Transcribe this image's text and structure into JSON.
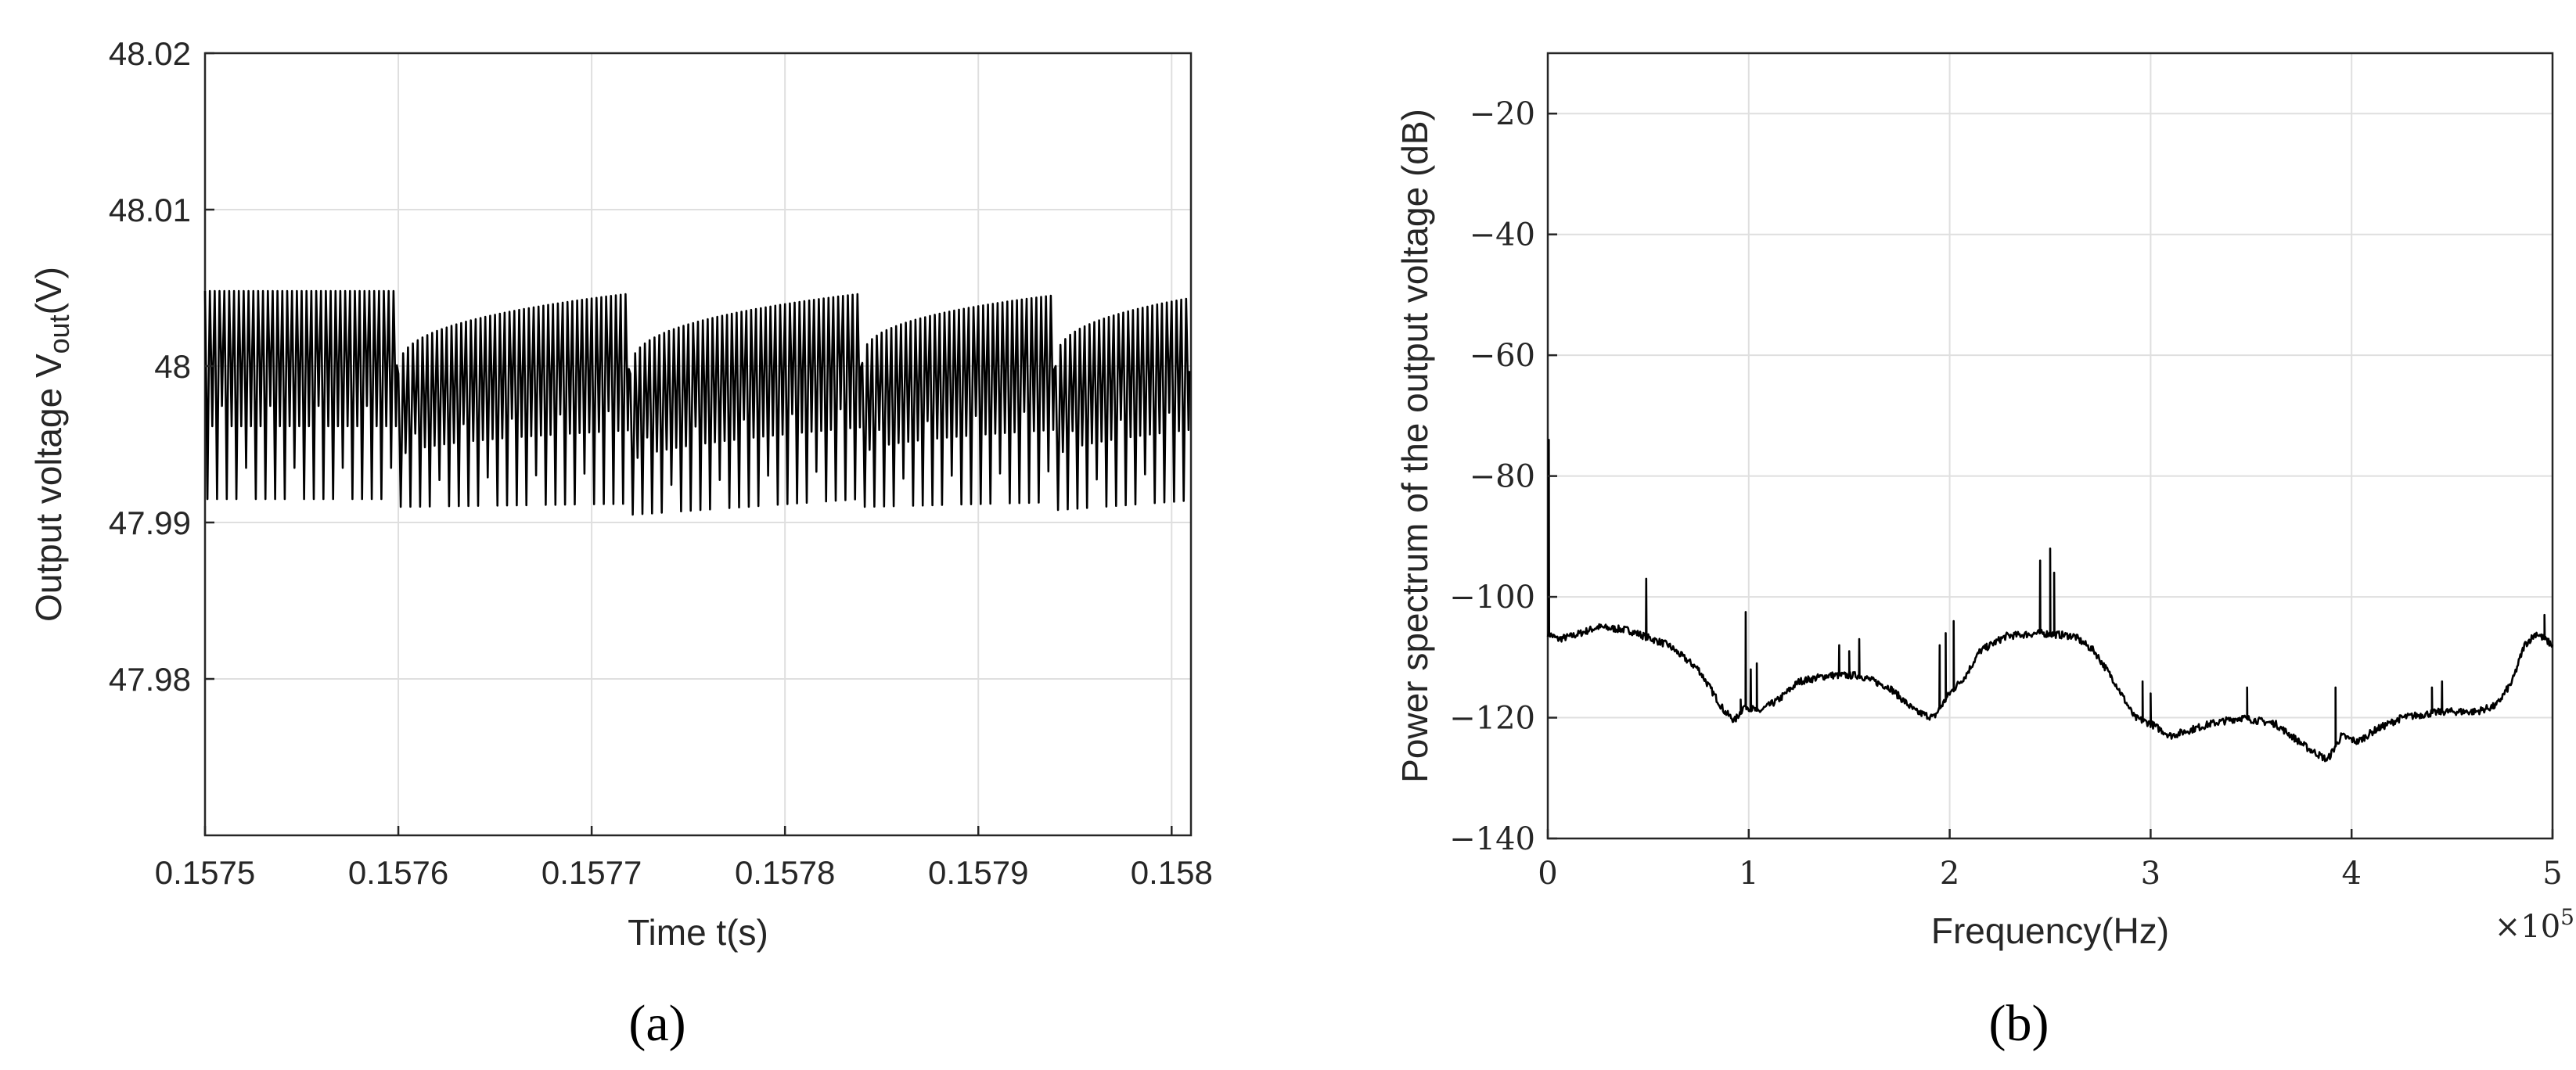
{
  "chart_data": [
    {
      "type": "line",
      "caption": "(a)",
      "xlabel": "Time t(s)",
      "ylabel": "Output voltage V",
      "ylabel_sub": "out",
      "ylabel_unit": "(V)",
      "xlim": [
        0.1575,
        0.15801
      ],
      "ylim": [
        47.97,
        48.02
      ],
      "xticks": [
        0.1575,
        0.1576,
        0.1577,
        0.1578,
        0.1579,
        0.158
      ],
      "xtick_labels": [
        "0.1575",
        "0.1576",
        "0.1577",
        "0.1578",
        "0.1579",
        "0.158"
      ],
      "yticks": [
        47.98,
        47.99,
        48.0,
        48.01,
        48.02
      ],
      "ytick_labels": [
        "47.98",
        "47.99",
        "48",
        "48.01",
        "48.02"
      ],
      "grid": true,
      "series": [
        {
          "ripple_period_s": 2.5e-06,
          "segments": [
            {
              "t_start": 0.1575,
              "t_end": 0.1576,
              "peak_start": 48.0048,
              "peak_end": 48.0048,
              "trough_start": 47.9915,
              "trough_end": 47.9915
            },
            {
              "t_start": 0.1576,
              "t_end": 0.15772,
              "peak_start": 47.9995,
              "peak_end": 48.0046,
              "trough_start": 47.991,
              "trough_end": 47.9912
            },
            {
              "t_start": 0.15772,
              "t_end": 0.15784,
              "peak_start": 47.9995,
              "peak_end": 48.0046,
              "trough_start": 47.9905,
              "trough_end": 47.9915
            },
            {
              "t_start": 0.15784,
              "t_end": 0.15794,
              "peak_start": 48.0002,
              "peak_end": 48.0045,
              "trough_start": 47.991,
              "trough_end": 47.9913
            },
            {
              "t_start": 0.15794,
              "t_end": 0.15801,
              "peak_start": 48.0,
              "peak_end": 48.0043,
              "trough_start": 47.9908,
              "trough_end": 47.9914
            }
          ]
        }
      ]
    },
    {
      "type": "line",
      "caption": "(b)",
      "xlabel": "Frequency(Hz)",
      "ylabel": "Power spectrum of the output voltage (dB)",
      "xlim": [
        0,
        500000
      ],
      "ylim": [
        -140,
        -10
      ],
      "xticks": [
        0,
        100000,
        200000,
        300000,
        400000,
        500000
      ],
      "xtick_labels": [
        "0",
        "1",
        "2",
        "3",
        "4",
        "5"
      ],
      "x_multiplier": "×10",
      "x_multiplier_exp": "5",
      "yticks": [
        -140,
        -120,
        -100,
        -80,
        -60,
        -40,
        -20
      ],
      "ytick_labels": [
        "−140",
        "−120",
        "−100",
        "−80",
        "−60",
        "−40",
        "−20"
      ],
      "grid": true,
      "series": [
        {
          "baseline": [
            [
              0,
              -106
            ],
            [
              5000,
              -107
            ],
            [
              12000,
              -106.5
            ],
            [
              25000,
              -105
            ],
            [
              40000,
              -105.5
            ],
            [
              60000,
              -108
            ],
            [
              75000,
              -112
            ],
            [
              88000,
              -119
            ],
            [
              93000,
              -120.5
            ],
            [
              98000,
              -118
            ],
            [
              105000,
              -119
            ],
            [
              115000,
              -117
            ],
            [
              125000,
              -114
            ],
            [
              140000,
              -113
            ],
            [
              155000,
              -113
            ],
            [
              170000,
              -115
            ],
            [
              183000,
              -119
            ],
            [
              192000,
              -120
            ],
            [
              200000,
              -116
            ],
            [
              208000,
              -113
            ],
            [
              215000,
              -109
            ],
            [
              228000,
              -106.5
            ],
            [
              245000,
              -106
            ],
            [
              262000,
              -106.5
            ],
            [
              272000,
              -109
            ],
            [
              282000,
              -114
            ],
            [
              292000,
              -120
            ],
            [
              300000,
              -121
            ],
            [
              310000,
              -123
            ],
            [
              330000,
              -121
            ],
            [
              345000,
              -120
            ],
            [
              362000,
              -121
            ],
            [
              378000,
              -125
            ],
            [
              388000,
              -127
            ],
            [
              395000,
              -123
            ],
            [
              403000,
              -124
            ],
            [
              412000,
              -122
            ],
            [
              425000,
              -120
            ],
            [
              445000,
              -119
            ],
            [
              462000,
              -119
            ],
            [
              472000,
              -118
            ],
            [
              480000,
              -114
            ],
            [
              486000,
              -108
            ],
            [
              492000,
              -106
            ],
            [
              500000,
              -108
            ]
          ],
          "peaks": [
            [
              500,
              -74
            ],
            [
              49000,
              -97
            ],
            [
              96000,
              -117
            ],
            [
              98500,
              -102.5
            ],
            [
              101000,
              -112
            ],
            [
              104000,
              -111
            ],
            [
              145000,
              -108
            ],
            [
              150000,
              -109
            ],
            [
              155000,
              -107
            ],
            [
              195000,
              -108
            ],
            [
              198000,
              -106
            ],
            [
              202000,
              -104
            ],
            [
              245000,
              -94
            ],
            [
              250000,
              -92
            ],
            [
              252000,
              -96
            ],
            [
              296000,
              -114
            ],
            [
              300000,
              -116
            ],
            [
              348000,
              -115
            ],
            [
              392000,
              -115
            ],
            [
              440000,
              -115
            ],
            [
              445000,
              -114
            ],
            [
              496000,
              -103
            ]
          ]
        }
      ]
    }
  ]
}
